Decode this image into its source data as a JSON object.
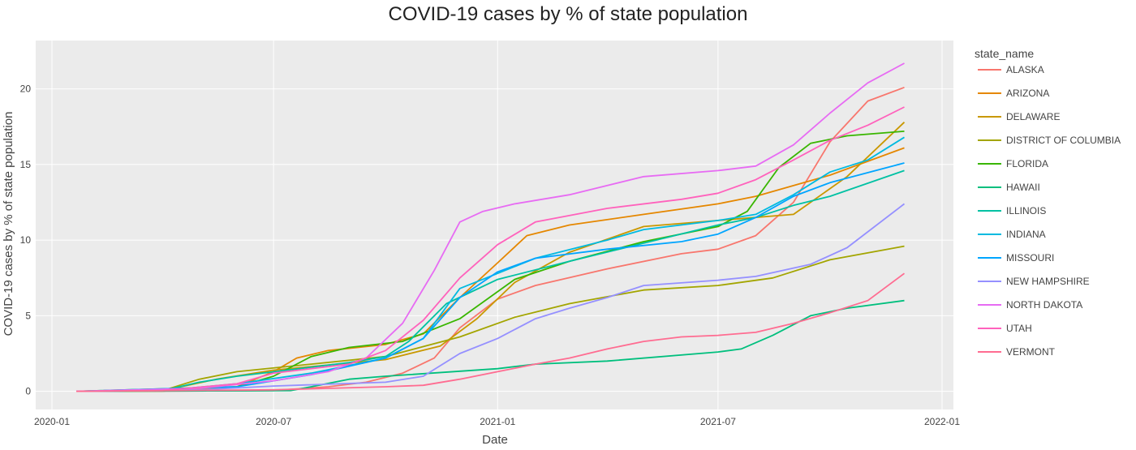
{
  "chart_data": {
    "type": "line",
    "title": "COVID-19 cases by % of state population",
    "xlabel": "Date",
    "ylabel": "COVID-19 cases by % of state population",
    "x_range": [
      "2020-01-01",
      "2022-01-01"
    ],
    "x_ticks": [
      "2020-01-01",
      "2020-07-01",
      "2021-01-01",
      "2021-07-01",
      "2022-01-01"
    ],
    "x_tick_labels": [
      "2020-01",
      "2020-07",
      "2021-01",
      "2021-07",
      "2022-01"
    ],
    "ylim": [
      -1.2,
      23.2
    ],
    "y_ticks": [
      0,
      5,
      10,
      15,
      20
    ],
    "grid": true,
    "legend_title": "state_name",
    "legend_position": "right",
    "series": [
      {
        "name": "ALASKA",
        "color": "#F8766D",
        "points": [
          [
            "2020-01-21",
            0
          ],
          [
            "2020-04-01",
            0.02
          ],
          [
            "2020-07-01",
            0.05
          ],
          [
            "2020-08-15",
            0.3
          ],
          [
            "2020-09-15",
            0.6
          ],
          [
            "2020-10-15",
            1.2
          ],
          [
            "2020-11-10",
            2.2
          ],
          [
            "2020-12-01",
            4.2
          ],
          [
            "2021-01-01",
            6.1
          ],
          [
            "2021-02-01",
            7.0
          ],
          [
            "2021-04-01",
            8.1
          ],
          [
            "2021-06-01",
            9.1
          ],
          [
            "2021-07-01",
            9.4
          ],
          [
            "2021-08-01",
            10.3
          ],
          [
            "2021-09-01",
            12.5
          ],
          [
            "2021-10-01",
            16.5
          ],
          [
            "2021-11-01",
            19.2
          ],
          [
            "2021-12-01",
            20.1
          ]
        ]
      },
      {
        "name": "ARIZONA",
        "color": "#E58700",
        "points": [
          [
            "2020-01-21",
            0
          ],
          [
            "2020-04-01",
            0.02
          ],
          [
            "2020-06-01",
            0.3
          ],
          [
            "2020-07-01",
            1.3
          ],
          [
            "2020-07-20",
            2.2
          ],
          [
            "2020-08-15",
            2.7
          ],
          [
            "2020-10-01",
            3.1
          ],
          [
            "2020-11-01",
            3.8
          ],
          [
            "2020-12-01",
            6.2
          ],
          [
            "2021-01-01",
            8.5
          ],
          [
            "2021-01-25",
            10.3
          ],
          [
            "2021-03-01",
            11.0
          ],
          [
            "2021-05-01",
            11.7
          ],
          [
            "2021-07-01",
            12.4
          ],
          [
            "2021-08-01",
            12.9
          ],
          [
            "2021-10-01",
            14.3
          ],
          [
            "2021-12-01",
            16.1
          ]
        ]
      },
      {
        "name": "DELAWARE",
        "color": "#C99800",
        "points": [
          [
            "2020-01-21",
            0
          ],
          [
            "2020-04-01",
            0.05
          ],
          [
            "2020-05-15",
            0.8
          ],
          [
            "2020-07-01",
            1.4
          ],
          [
            "2020-10-01",
            2.1
          ],
          [
            "2020-11-15",
            3.0
          ],
          [
            "2020-12-15",
            4.8
          ],
          [
            "2021-01-15",
            7.2
          ],
          [
            "2021-03-01",
            9.2
          ],
          [
            "2021-05-01",
            10.9
          ],
          [
            "2021-07-01",
            11.3
          ],
          [
            "2021-09-01",
            11.7
          ],
          [
            "2021-10-15",
            14.2
          ],
          [
            "2021-12-01",
            17.8
          ]
        ]
      },
      {
        "name": "DISTRICT OF COLUMBIA",
        "color": "#A3A500",
        "points": [
          [
            "2020-01-21",
            0
          ],
          [
            "2020-04-01",
            0.05
          ],
          [
            "2020-05-01",
            0.8
          ],
          [
            "2020-06-01",
            1.3
          ],
          [
            "2020-08-01",
            1.8
          ],
          [
            "2020-10-01",
            2.3
          ],
          [
            "2020-12-01",
            3.6
          ],
          [
            "2021-01-15",
            4.9
          ],
          [
            "2021-03-01",
            5.8
          ],
          [
            "2021-05-01",
            6.7
          ],
          [
            "2021-07-01",
            7.0
          ],
          [
            "2021-08-15",
            7.5
          ],
          [
            "2021-10-01",
            8.7
          ],
          [
            "2021-12-01",
            9.6
          ]
        ]
      },
      {
        "name": "FLORIDA",
        "color": "#39B600",
        "points": [
          [
            "2020-01-21",
            0
          ],
          [
            "2020-06-01",
            0.3
          ],
          [
            "2020-07-01",
            1.0
          ],
          [
            "2020-08-01",
            2.3
          ],
          [
            "2020-09-01",
            2.9
          ],
          [
            "2020-10-15",
            3.3
          ],
          [
            "2020-12-01",
            4.8
          ],
          [
            "2021-01-15",
            7.4
          ],
          [
            "2021-03-01",
            8.6
          ],
          [
            "2021-05-01",
            9.9
          ],
          [
            "2021-07-01",
            10.9
          ],
          [
            "2021-07-25",
            11.9
          ],
          [
            "2021-08-20",
            14.8
          ],
          [
            "2021-09-15",
            16.4
          ],
          [
            "2021-10-15",
            16.9
          ],
          [
            "2021-12-01",
            17.2
          ]
        ]
      },
      {
        "name": "HAWAII",
        "color": "#00BF7D",
        "points": [
          [
            "2020-01-21",
            0
          ],
          [
            "2020-07-15",
            0.05
          ],
          [
            "2020-08-01",
            0.3
          ],
          [
            "2020-09-01",
            0.8
          ],
          [
            "2020-10-01",
            1.0
          ],
          [
            "2021-01-01",
            1.5
          ],
          [
            "2021-02-01",
            1.8
          ],
          [
            "2021-04-01",
            2.0
          ],
          [
            "2021-07-01",
            2.6
          ],
          [
            "2021-07-20",
            2.8
          ],
          [
            "2021-08-15",
            3.7
          ],
          [
            "2021-09-15",
            5.0
          ],
          [
            "2021-10-15",
            5.5
          ],
          [
            "2021-12-01",
            6.0
          ]
        ]
      },
      {
        "name": "ILLINOIS",
        "color": "#00C1A3",
        "points": [
          [
            "2020-01-21",
            0
          ],
          [
            "2020-04-01",
            0.05
          ],
          [
            "2020-05-01",
            0.6
          ],
          [
            "2020-06-01",
            1.0
          ],
          [
            "2020-09-01",
            1.9
          ],
          [
            "2020-10-01",
            2.3
          ],
          [
            "2020-10-20",
            3.3
          ],
          [
            "2020-11-20",
            5.8
          ],
          [
            "2021-01-01",
            7.4
          ],
          [
            "2021-03-01",
            8.6
          ],
          [
            "2021-05-01",
            9.8
          ],
          [
            "2021-07-01",
            11.0
          ],
          [
            "2021-08-01",
            11.5
          ],
          [
            "2021-09-01",
            12.3
          ],
          [
            "2021-10-01",
            12.9
          ],
          [
            "2021-12-01",
            14.6
          ]
        ]
      },
      {
        "name": "INDIANA",
        "color": "#00BAE0",
        "points": [
          [
            "2020-01-21",
            0
          ],
          [
            "2020-04-01",
            0.05
          ],
          [
            "2020-06-01",
            0.5
          ],
          [
            "2020-08-01",
            1.2
          ],
          [
            "2020-10-01",
            2.2
          ],
          [
            "2020-11-01",
            3.5
          ],
          [
            "2020-12-01",
            6.8
          ],
          [
            "2021-01-01",
            7.8
          ],
          [
            "2021-02-01",
            8.8
          ],
          [
            "2021-04-01",
            10.0
          ],
          [
            "2021-05-01",
            10.7
          ],
          [
            "2021-07-01",
            11.3
          ],
          [
            "2021-08-01",
            11.7
          ],
          [
            "2021-09-01",
            13.0
          ],
          [
            "2021-10-01",
            14.5
          ],
          [
            "2021-11-01",
            15.3
          ],
          [
            "2021-12-01",
            16.8
          ]
        ]
      },
      {
        "name": "MISSOURI",
        "color": "#00A5FF",
        "points": [
          [
            "2020-01-21",
            0
          ],
          [
            "2020-06-01",
            0.3
          ],
          [
            "2020-08-01",
            1.1
          ],
          [
            "2020-10-01",
            2.2
          ],
          [
            "2020-11-01",
            3.5
          ],
          [
            "2020-12-01",
            6.2
          ],
          [
            "2021-01-01",
            7.9
          ],
          [
            "2021-02-01",
            8.8
          ],
          [
            "2021-04-01",
            9.4
          ],
          [
            "2021-06-01",
            9.9
          ],
          [
            "2021-07-01",
            10.4
          ],
          [
            "2021-08-01",
            11.5
          ],
          [
            "2021-09-01",
            12.9
          ],
          [
            "2021-10-01",
            13.8
          ],
          [
            "2021-12-01",
            15.1
          ]
        ]
      },
      {
        "name": "NEW HAMPSHIRE",
        "color": "#9590FF",
        "points": [
          [
            "2020-01-21",
            0
          ],
          [
            "2020-05-01",
            0.1
          ],
          [
            "2020-07-01",
            0.35
          ],
          [
            "2020-10-01",
            0.6
          ],
          [
            "2020-11-01",
            1.0
          ],
          [
            "2020-12-01",
            2.5
          ],
          [
            "2021-01-01",
            3.5
          ],
          [
            "2021-02-01",
            4.8
          ],
          [
            "2021-03-01",
            5.5
          ],
          [
            "2021-04-01",
            6.2
          ],
          [
            "2021-05-01",
            7.0
          ],
          [
            "2021-07-01",
            7.35
          ],
          [
            "2021-08-01",
            7.6
          ],
          [
            "2021-09-15",
            8.4
          ],
          [
            "2021-10-15",
            9.5
          ],
          [
            "2021-12-01",
            12.4
          ]
        ]
      },
      {
        "name": "NORTH DAKOTA",
        "color": "#E76BF3",
        "points": [
          [
            "2020-01-21",
            0
          ],
          [
            "2020-05-01",
            0.2
          ],
          [
            "2020-07-01",
            0.7
          ],
          [
            "2020-08-15",
            1.3
          ],
          [
            "2020-09-15",
            2.2
          ],
          [
            "2020-10-15",
            4.5
          ],
          [
            "2020-11-10",
            8.0
          ],
          [
            "2020-12-01",
            11.2
          ],
          [
            "2020-12-20",
            11.9
          ],
          [
            "2021-01-15",
            12.4
          ],
          [
            "2021-03-01",
            13.0
          ],
          [
            "2021-05-01",
            14.2
          ],
          [
            "2021-07-01",
            14.6
          ],
          [
            "2021-08-01",
            14.9
          ],
          [
            "2021-09-01",
            16.3
          ],
          [
            "2021-10-01",
            18.4
          ],
          [
            "2021-11-01",
            20.4
          ],
          [
            "2021-12-01",
            21.7
          ]
        ]
      },
      {
        "name": "UTAH",
        "color": "#FF62BC",
        "points": [
          [
            "2020-01-21",
            0
          ],
          [
            "2020-04-01",
            0.05
          ],
          [
            "2020-06-01",
            0.5
          ],
          [
            "2020-07-01",
            1.2
          ],
          [
            "2020-09-01",
            1.8
          ],
          [
            "2020-10-01",
            2.7
          ],
          [
            "2020-11-01",
            4.7
          ],
          [
            "2020-12-01",
            7.5
          ],
          [
            "2021-01-01",
            9.7
          ],
          [
            "2021-02-01",
            11.2
          ],
          [
            "2021-04-01",
            12.1
          ],
          [
            "2021-06-01",
            12.7
          ],
          [
            "2021-07-01",
            13.1
          ],
          [
            "2021-08-01",
            14.0
          ],
          [
            "2021-09-01",
            15.3
          ],
          [
            "2021-10-01",
            16.6
          ],
          [
            "2021-11-01",
            17.6
          ],
          [
            "2021-12-01",
            18.8
          ]
        ]
      },
      {
        "name": "VERMONT",
        "color": "#FF6C91",
        "points": [
          [
            "2020-01-21",
            0
          ],
          [
            "2020-07-01",
            0.1
          ],
          [
            "2020-10-01",
            0.3
          ],
          [
            "2020-11-01",
            0.4
          ],
          [
            "2020-12-01",
            0.8
          ],
          [
            "2021-01-01",
            1.3
          ],
          [
            "2021-02-01",
            1.8
          ],
          [
            "2021-03-01",
            2.2
          ],
          [
            "2021-04-01",
            2.8
          ],
          [
            "2021-05-01",
            3.3
          ],
          [
            "2021-06-01",
            3.6
          ],
          [
            "2021-07-01",
            3.7
          ],
          [
            "2021-08-01",
            3.9
          ],
          [
            "2021-09-01",
            4.5
          ],
          [
            "2021-10-01",
            5.2
          ],
          [
            "2021-11-01",
            6.0
          ],
          [
            "2021-12-01",
            7.8
          ]
        ]
      }
    ]
  }
}
